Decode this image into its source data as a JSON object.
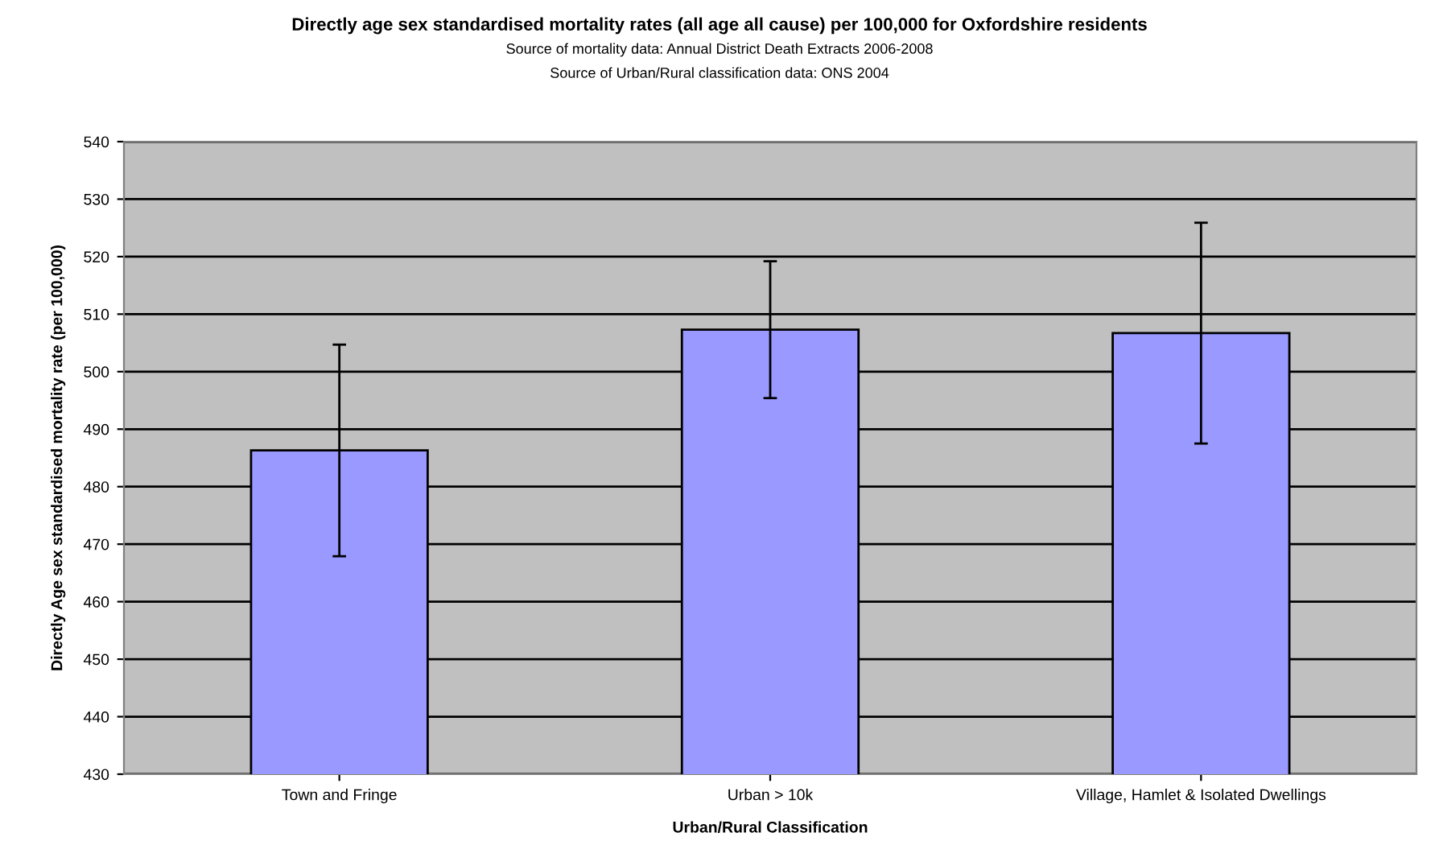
{
  "chart_data": {
    "type": "bar",
    "title": "Directly age sex standardised mortality rates (all age all cause) per 100,000 for Oxfordshire residents",
    "annotations": [
      "Source of mortality data: Annual District Death Extracts 2006-2008",
      "Source of Urban/Rural classification data: ONS 2004"
    ],
    "xlabel": "Urban/Rural Classification",
    "ylabel": "Directly Age sex standardised mortality rate (per 100,000)",
    "categories": [
      "Town and Fringe",
      "Urban > 10k",
      "Village, Hamlet & Isolated Dwellings"
    ],
    "values": [
      486.3,
      507.3,
      506.7
    ],
    "errors": [
      18.4,
      11.9,
      19.2
    ],
    "color": "#9999ff",
    "ylim": [
      430,
      540
    ],
    "yticks": [
      430,
      440,
      450,
      460,
      470,
      480,
      490,
      500,
      510,
      520,
      530,
      540
    ],
    "grid": "y",
    "legend": false
  }
}
